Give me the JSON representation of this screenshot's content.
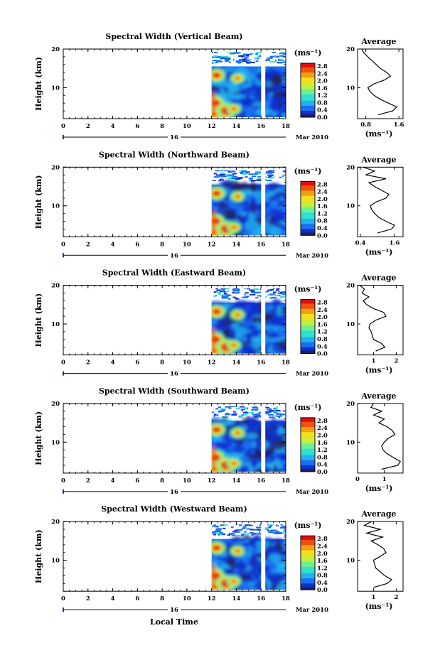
{
  "chart_data": {
    "type": "heatmap",
    "date_label": "16",
    "month_year": "Mar 2010",
    "xlabel": "Local Time",
    "ylabel": "Height (km)",
    "unit": "(ms⁻¹)",
    "x_ticks": [
      "0",
      "2",
      "4",
      "6",
      "8",
      "10",
      "12",
      "14",
      "16",
      "18"
    ],
    "xlim": [
      0,
      18
    ],
    "ylim": [
      2,
      20
    ],
    "y_ticks": [
      "10",
      "20"
    ],
    "data_coverage": {
      "start_hour": 12,
      "end_hour": 18,
      "gap_start_hour": 16.0,
      "gap_end_hour": 16.35
    },
    "colorbar_ticks": [
      "2.8",
      "2.4",
      "2.0",
      "1.6",
      "1.2",
      "0.8",
      "0.4",
      "0.0"
    ],
    "colorbar_range": [
      0,
      2.8
    ],
    "colors": [
      "#202060",
      "#1030d0",
      "#1a70f0",
      "#22b0f0",
      "#30e0d0",
      "#70f090",
      "#c0f040",
      "#f0e020",
      "#f0a010",
      "#f05010",
      "#e01010"
    ],
    "average_title": "Average",
    "panels": [
      {
        "title": "Spectral Width (Vertical Beam)",
        "avg_xticks": [
          "0.8",
          "1.6"
        ],
        "avg_xlim": [
          0.6,
          1.7
        ],
        "avg_profile": {
          "height": [
            3,
            4,
            5,
            6,
            7,
            8,
            9,
            10,
            11,
            12,
            13,
            14,
            15,
            16,
            17,
            18,
            19,
            20
          ],
          "value": [
            1.1,
            1.45,
            1.55,
            1.35,
            1.15,
            1.0,
            0.9,
            0.85,
            1.0,
            1.25,
            1.4,
            1.3,
            1.15,
            1.05,
            0.95,
            0.85,
            0.75,
            0.7
          ]
        }
      },
      {
        "title": "Spectral Width (Northward Beam)",
        "avg_xticks": [
          "0.4",
          "1.6"
        ],
        "avg_xlim": [
          0.3,
          1.9
        ],
        "avg_profile": {
          "height": [
            3,
            4,
            5,
            6,
            7,
            8,
            9,
            10,
            11,
            12,
            13,
            14,
            15,
            16,
            17,
            18,
            19,
            20
          ],
          "value": [
            1.0,
            1.5,
            1.6,
            1.3,
            1.05,
            0.9,
            0.8,
            0.75,
            0.95,
            1.3,
            1.4,
            1.15,
            0.9,
            0.7,
            1.3,
            0.6,
            0.9,
            0.5
          ]
        }
      },
      {
        "title": "Spectral Width (Eastward Beam)",
        "avg_xticks": [
          "1",
          "2"
        ],
        "avg_xlim": [
          0.3,
          2.3
        ],
        "avg_profile": {
          "height": [
            3,
            4,
            5,
            6,
            7,
            8,
            9,
            10,
            11,
            12,
            13,
            14,
            15,
            16,
            17,
            18,
            19,
            20
          ],
          "value": [
            1.1,
            1.5,
            1.35,
            1.0,
            0.95,
            0.9,
            0.8,
            0.85,
            1.1,
            1.55,
            1.45,
            1.0,
            0.7,
            0.55,
            0.8,
            0.5,
            0.6,
            0.4
          ]
        }
      },
      {
        "title": "Spectral Width (Southward Beam)",
        "avg_xticks": [
          "0",
          "1"
        ],
        "avg_xlim": [
          0.0,
          1.7
        ],
        "avg_profile": {
          "height": [
            3,
            4,
            5,
            6,
            7,
            8,
            9,
            10,
            11,
            12,
            13,
            14,
            15,
            16,
            17,
            18,
            19,
            20
          ],
          "value": [
            0.9,
            1.5,
            1.6,
            1.35,
            1.1,
            0.95,
            0.9,
            1.0,
            1.15,
            1.4,
            1.3,
            1.1,
            0.8,
            1.0,
            0.6,
            0.9,
            0.5,
            0.6
          ]
        }
      },
      {
        "title": "Spectral Width (Westward Beam)",
        "avg_xticks": [
          "1",
          "2"
        ],
        "avg_xlim": [
          0.3,
          2.3
        ],
        "avg_profile": {
          "height": [
            3,
            4,
            5,
            6,
            7,
            8,
            9,
            10,
            11,
            12,
            13,
            14,
            15,
            16,
            17,
            18,
            19,
            20
          ],
          "value": [
            1.0,
            1.6,
            1.8,
            1.5,
            1.3,
            1.1,
            1.05,
            1.0,
            1.3,
            1.55,
            1.45,
            1.2,
            0.9,
            1.4,
            0.7,
            1.3,
            0.6,
            0.9
          ]
        }
      }
    ]
  }
}
